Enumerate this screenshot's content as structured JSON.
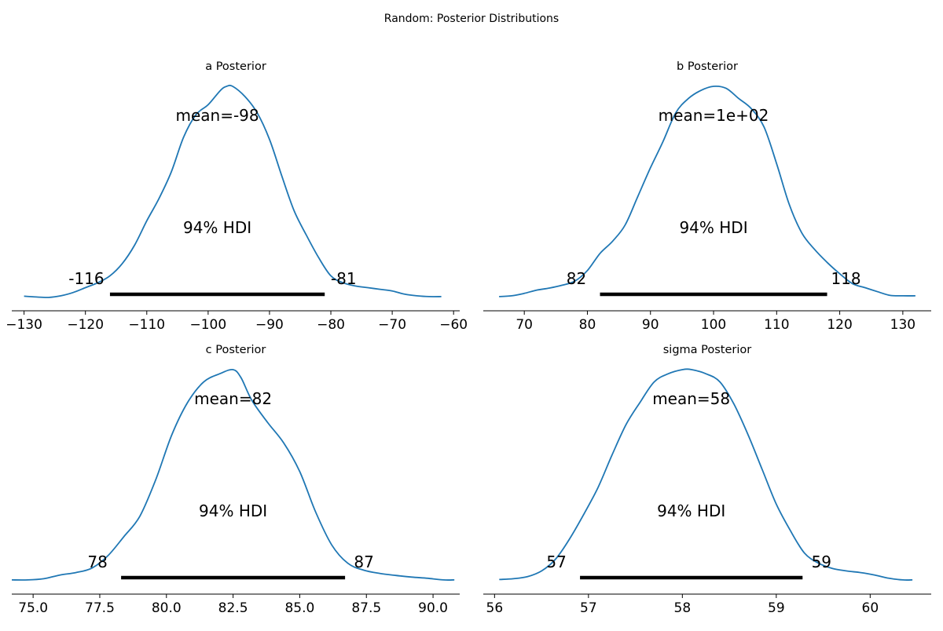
{
  "suptitle": "Random: Posterior Distributions",
  "colors": {
    "line": "#1f77b4",
    "hdi": "#000000",
    "axis": "#000000",
    "text": "#000000"
  },
  "chart_data": [
    {
      "type": "line",
      "title": "a Posterior",
      "mean_label": "mean=-98",
      "hdi_label": "94% HDI",
      "hdi": {
        "low": -116,
        "high": -81,
        "low_label": "-116",
        "high_label": "-81"
      },
      "xlim": [
        -132,
        -59
      ],
      "xticks": [
        -130,
        -120,
        -110,
        -100,
        -90,
        -80,
        -70,
        -60
      ],
      "xtick_labels": [
        "−130",
        "−120",
        "−110",
        "−100",
        "−90",
        "−80",
        "−70",
        "−60"
      ],
      "density": {
        "x": [
          -130,
          -128,
          -126,
          -124,
          -122,
          -120,
          -118,
          -116,
          -114,
          -112,
          -110,
          -108,
          -106,
          -104,
          -102,
          -100,
          -98,
          -97,
          -96,
          -94,
          -92,
          -90,
          -88,
          -86,
          -84,
          -82,
          -80,
          -78,
          -76,
          -74,
          -72,
          -70,
          -68,
          -66,
          -64,
          -62
        ],
        "y": [
          0.005,
          0.003,
          0.002,
          0.006,
          0.014,
          0.026,
          0.038,
          0.055,
          0.085,
          0.13,
          0.19,
          0.245,
          0.31,
          0.395,
          0.45,
          0.475,
          0.51,
          0.52,
          0.52,
          0.495,
          0.455,
          0.39,
          0.3,
          0.215,
          0.155,
          0.1,
          0.055,
          0.038,
          0.03,
          0.026,
          0.022,
          0.018,
          0.01,
          0.006,
          0.004,
          0.004
        ]
      }
    },
    {
      "type": "line",
      "title": "b Posterior",
      "mean_label": "mean=1e+02",
      "hdi_label": "94% HDI",
      "hdi": {
        "low": 82,
        "high": 118,
        "low_label": "82",
        "high_label": "118"
      },
      "xlim": [
        63.5,
        134.5
      ],
      "xticks": [
        70,
        80,
        90,
        100,
        110,
        120,
        130
      ],
      "xtick_labels": [
        "70",
        "80",
        "90",
        "100",
        "110",
        "120",
        "130"
      ],
      "density": {
        "x": [
          66,
          68,
          70,
          72,
          74,
          76,
          78,
          80,
          82,
          84,
          86,
          88,
          90,
          92,
          94,
          96,
          98,
          100,
          102,
          104,
          106,
          108,
          110,
          112,
          114,
          116,
          118,
          120,
          122,
          124,
          126,
          128,
          130,
          132
        ],
        "y": [
          0.004,
          0.006,
          0.012,
          0.02,
          0.025,
          0.032,
          0.042,
          0.068,
          0.11,
          0.14,
          0.18,
          0.25,
          0.32,
          0.385,
          0.455,
          0.49,
          0.51,
          0.52,
          0.515,
          0.49,
          0.465,
          0.42,
          0.33,
          0.23,
          0.16,
          0.12,
          0.088,
          0.06,
          0.036,
          0.026,
          0.016,
          0.007,
          0.006,
          0.006
        ]
      }
    },
    {
      "type": "line",
      "title": "c Posterior",
      "mean_label": "mean=82",
      "hdi_label": "94% HDI",
      "hdi": {
        "low": 78.3,
        "high": 86.7,
        "low_label": "78",
        "high_label": "87"
      },
      "xlim": [
        74.2,
        91.0
      ],
      "xticks": [
        75.0,
        77.5,
        80.0,
        82.5,
        85.0,
        87.5,
        90.0
      ],
      "xtick_labels": [
        "75.0",
        "77.5",
        "80.0",
        "82.5",
        "85.0",
        "87.5",
        "90.0"
      ],
      "density": {
        "x": [
          74.2,
          74.8,
          75.4,
          76.0,
          76.6,
          77.2,
          77.8,
          78.4,
          79.0,
          79.6,
          80.2,
          80.8,
          81.4,
          82.0,
          82.5,
          82.8,
          83.2,
          83.8,
          84.4,
          85.0,
          85.6,
          86.2,
          86.8,
          87.4,
          88.0,
          88.6,
          89.2,
          89.8,
          90.4,
          90.8
        ],
        "y": [
          0.004,
          0.004,
          0.007,
          0.016,
          0.022,
          0.033,
          0.063,
          0.11,
          0.16,
          0.25,
          0.36,
          0.44,
          0.49,
          0.51,
          0.52,
          0.5,
          0.445,
          0.39,
          0.34,
          0.27,
          0.17,
          0.09,
          0.045,
          0.028,
          0.02,
          0.015,
          0.011,
          0.008,
          0.004,
          0.004
        ]
      }
    },
    {
      "type": "line",
      "title": "sigma Posterior",
      "mean_label": "mean=58",
      "hdi_label": "94% HDI",
      "hdi": {
        "low": 56.91,
        "high": 59.28,
        "low_label": "57",
        "high_label": "59"
      },
      "xlim": [
        55.88,
        60.65
      ],
      "xticks": [
        56,
        57,
        58,
        59,
        60
      ],
      "xtick_labels": [
        "56",
        "57",
        "58",
        "59",
        "60"
      ],
      "density": {
        "x": [
          56.05,
          56.2,
          56.35,
          56.5,
          56.65,
          56.8,
          56.95,
          57.1,
          57.25,
          57.4,
          57.55,
          57.7,
          57.85,
          58.0,
          58.1,
          58.25,
          58.4,
          58.55,
          58.7,
          58.85,
          59.0,
          59.15,
          59.3,
          59.45,
          59.6,
          59.75,
          59.9,
          60.05,
          60.2,
          60.35,
          60.45
        ],
        "y": [
          0.005,
          0.007,
          0.012,
          0.026,
          0.055,
          0.105,
          0.165,
          0.23,
          0.31,
          0.385,
          0.44,
          0.49,
          0.51,
          0.52,
          0.52,
          0.51,
          0.49,
          0.435,
          0.36,
          0.275,
          0.19,
          0.125,
          0.07,
          0.045,
          0.032,
          0.026,
          0.022,
          0.016,
          0.008,
          0.004,
          0.004
        ]
      }
    }
  ]
}
